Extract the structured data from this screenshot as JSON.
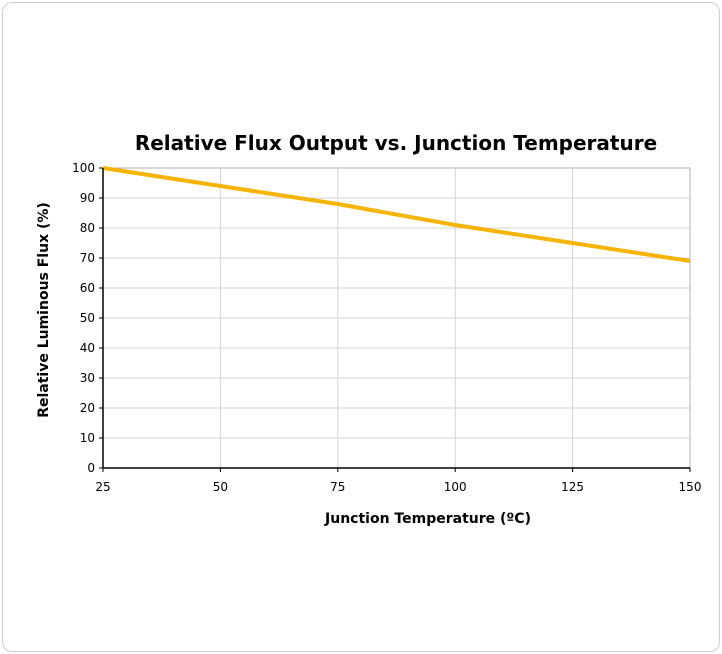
{
  "chart_data": {
    "type": "line",
    "title": "Relative Flux Output vs. Junction Temperature",
    "xlabel": "Junction Temperature (ºC)",
    "ylabel": "Relative Luminous Flux (%)",
    "xlim": [
      25,
      150
    ],
    "ylim": [
      0,
      100
    ],
    "x_ticks": [
      25,
      50,
      75,
      100,
      125,
      150
    ],
    "y_ticks": [
      0,
      10,
      20,
      30,
      40,
      50,
      60,
      70,
      80,
      90,
      100
    ],
    "grid": true,
    "legend": "none",
    "series": [
      {
        "color": "#F5B400",
        "x": [
          25,
          50,
          75,
          100,
          125,
          150
        ],
        "y": [
          100,
          94,
          88,
          81,
          75,
          69
        ]
      }
    ]
  }
}
